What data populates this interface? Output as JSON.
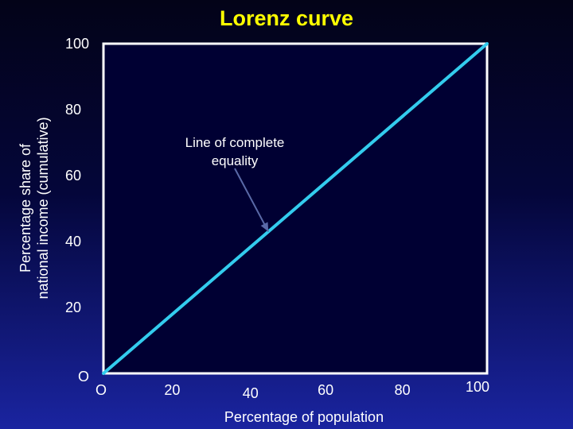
{
  "chart_data": {
    "type": "line",
    "title": "Lorenz curve",
    "xlabel": "Percentage of population",
    "ylabel_lines": [
      "Percentage share of",
      "national income (cumulative)"
    ],
    "xlim": [
      0,
      100
    ],
    "ylim": [
      0,
      100
    ],
    "origin_label": "O",
    "x_ticks": [
      "20",
      "40",
      "60",
      "80",
      "100"
    ],
    "y_ticks": [
      "20",
      "40",
      "60",
      "80",
      "100"
    ],
    "series": [
      {
        "x": [
          0,
          100
        ],
        "y": [
          0,
          100
        ],
        "color": "#33ccee"
      }
    ],
    "annotation": {
      "text_lines": [
        "Line of complete",
        "equality"
      ],
      "target": [
        43,
        43
      ]
    },
    "grid": false,
    "legend": "none"
  }
}
